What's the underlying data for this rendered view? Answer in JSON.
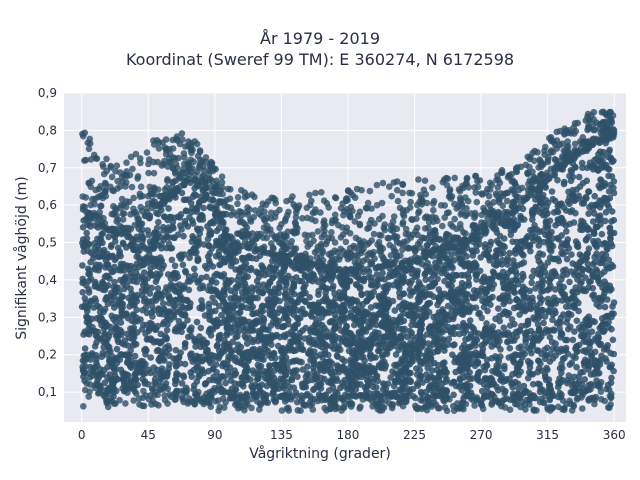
{
  "chart_data": {
    "type": "scatter",
    "title": "År 1979 - 2019",
    "subtitle": "Koordinat (Sweref 99 TM): E 360274, N 6172598",
    "xlabel": "Vågriktning (grader)",
    "ylabel": "Signifikant våghöjd (m)",
    "xlim": [
      -12,
      368
    ],
    "ylim": [
      0.02,
      0.9
    ],
    "xticks": [
      0,
      45,
      90,
      135,
      180,
      225,
      270,
      315,
      360
    ],
    "xtick_labels": [
      "0",
      "45",
      "90",
      "135",
      "180",
      "225",
      "270",
      "315",
      "360"
    ],
    "yticks": [
      0.1,
      0.2,
      0.3,
      0.4,
      0.5,
      0.6,
      0.7,
      0.8,
      0.9
    ],
    "ytick_labels": [
      "0,1",
      "0,2",
      "0,3",
      "0,4",
      "0,5",
      "0,6",
      "0,7",
      "0,8",
      "0,9"
    ],
    "grid": true,
    "marker_color": "#2e5068",
    "background": "#e9e9f1",
    "envelope": {
      "x": [
        0,
        5,
        10,
        20,
        30,
        45,
        60,
        68,
        75,
        90,
        100,
        135,
        180,
        225,
        270,
        290,
        315,
        330,
        345,
        360
      ],
      "y_core_upper": [
        0.6,
        0.58,
        0.55,
        0.53,
        0.52,
        0.58,
        0.62,
        0.65,
        0.67,
        0.6,
        0.5,
        0.46,
        0.42,
        0.45,
        0.52,
        0.58,
        0.66,
        0.72,
        0.76,
        0.78
      ],
      "y_max": [
        0.83,
        0.8,
        0.76,
        0.72,
        0.72,
        0.78,
        0.79,
        0.8,
        0.78,
        0.71,
        0.65,
        0.62,
        0.65,
        0.67,
        0.68,
        0.7,
        0.78,
        0.82,
        0.85,
        0.85
      ],
      "y_core_lower": [
        0.13,
        0.12,
        0.12,
        0.11,
        0.11,
        0.11,
        0.11,
        0.11,
        0.1,
        0.1,
        0.1,
        0.09,
        0.09,
        0.09,
        0.09,
        0.09,
        0.09,
        0.1,
        0.11,
        0.12
      ],
      "y_min": [
        0.06,
        0.05,
        0.06,
        0.06,
        0.06,
        0.06,
        0.06,
        0.06,
        0.06,
        0.05,
        0.05,
        0.05,
        0.05,
        0.05,
        0.05,
        0.05,
        0.05,
        0.05,
        0.05,
        0.06
      ]
    }
  }
}
